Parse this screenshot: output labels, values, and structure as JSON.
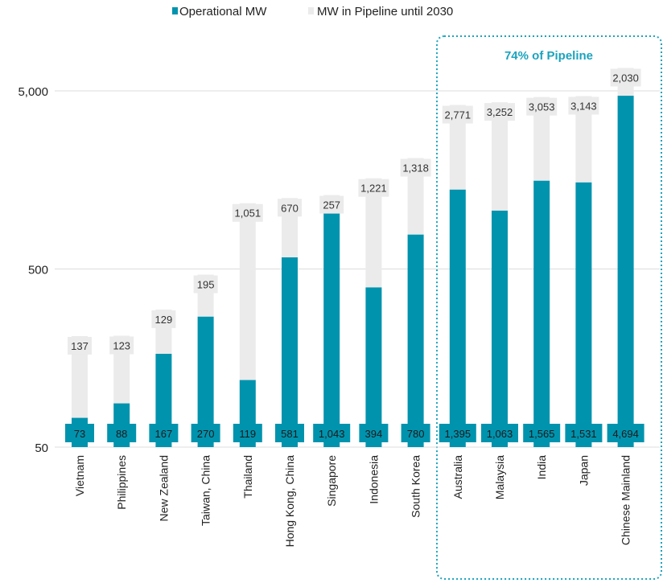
{
  "chart_data": {
    "type": "bar",
    "stacked": true,
    "y_scale": "log",
    "ylim": [
      50,
      7000
    ],
    "y_ticks": [
      "50",
      "500",
      "5,000"
    ],
    "y_tick_values": [
      50,
      500,
      5000
    ],
    "grid": true,
    "legend_placement": "top-center",
    "categories": [
      "Vietnam",
      "Philippines",
      "New Zealand",
      "Taiwan, China",
      "Thailand",
      "Hong Kong, China",
      "Singapore",
      "Indonesia",
      "South Korea",
      "Australia",
      "Malaysia",
      "India",
      "Japan",
      "Chinese Mainland"
    ],
    "series": [
      {
        "name": "Operational MW",
        "color": "#0093AE",
        "values": [
          73,
          88,
          167,
          270,
          119,
          581,
          1043,
          394,
          780,
          1395,
          1063,
          1565,
          1531,
          4694
        ],
        "labels": [
          "73",
          "88",
          "167",
          "270",
          "119",
          "581",
          "1,043",
          "394",
          "780",
          "1,395",
          "1,063",
          "1,565",
          "1,531",
          "4,694"
        ]
      },
      {
        "name": "MW in Pipeline until 2030",
        "color": "#EBEBEB",
        "values": [
          137,
          123,
          129,
          195,
          1051,
          670,
          257,
          1221,
          1318,
          2771,
          3252,
          3053,
          3143,
          2030
        ],
        "labels": [
          "137",
          "123",
          "129",
          "195",
          "1,051",
          "670",
          "257",
          "1,221",
          "1,318",
          "2,771",
          "3,252",
          "3,053",
          "3,143",
          "2,030"
        ]
      }
    ],
    "annotation": {
      "text": "74% of Pipeline",
      "color": "#1AA3BE",
      "covers": [
        "Australia",
        "Malaysia",
        "India",
        "Japan",
        "Chinese Mainland"
      ]
    }
  }
}
